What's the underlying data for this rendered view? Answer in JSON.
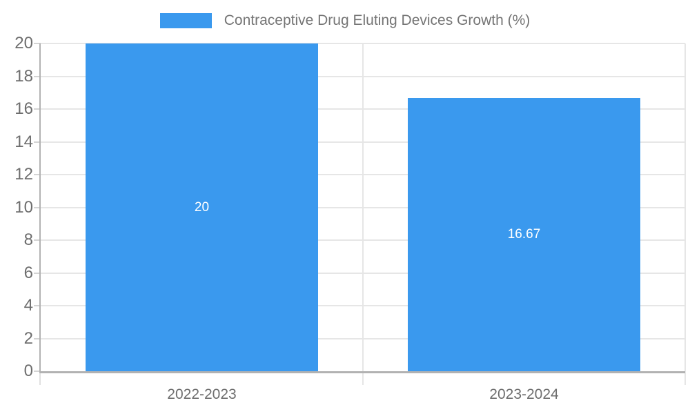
{
  "legend": {
    "label": "Contraceptive Drug Eluting Devices Growth (%)"
  },
  "colors": {
    "bar": "#3a99ee",
    "axis_line": "#b2b2b2",
    "gridline": "#e6e6e6",
    "tick_text": "#6e6e6e",
    "legend_text": "#757575",
    "bar_label_text": "#ffffff",
    "background": "#ffffff"
  },
  "chart_data": {
    "type": "bar",
    "title": "",
    "categories": [
      "2022-2023",
      "2023-2024"
    ],
    "series": [
      {
        "name": "Contraceptive Drug Eluting Devices Growth (%)",
        "values": [
          20,
          16.67
        ]
      }
    ],
    "bar_labels": [
      "20",
      "16.67"
    ],
    "xlabel": "",
    "ylabel": "",
    "ylim": [
      0,
      20
    ],
    "ytick_step": 2,
    "grid": true,
    "legend_position": "top"
  }
}
